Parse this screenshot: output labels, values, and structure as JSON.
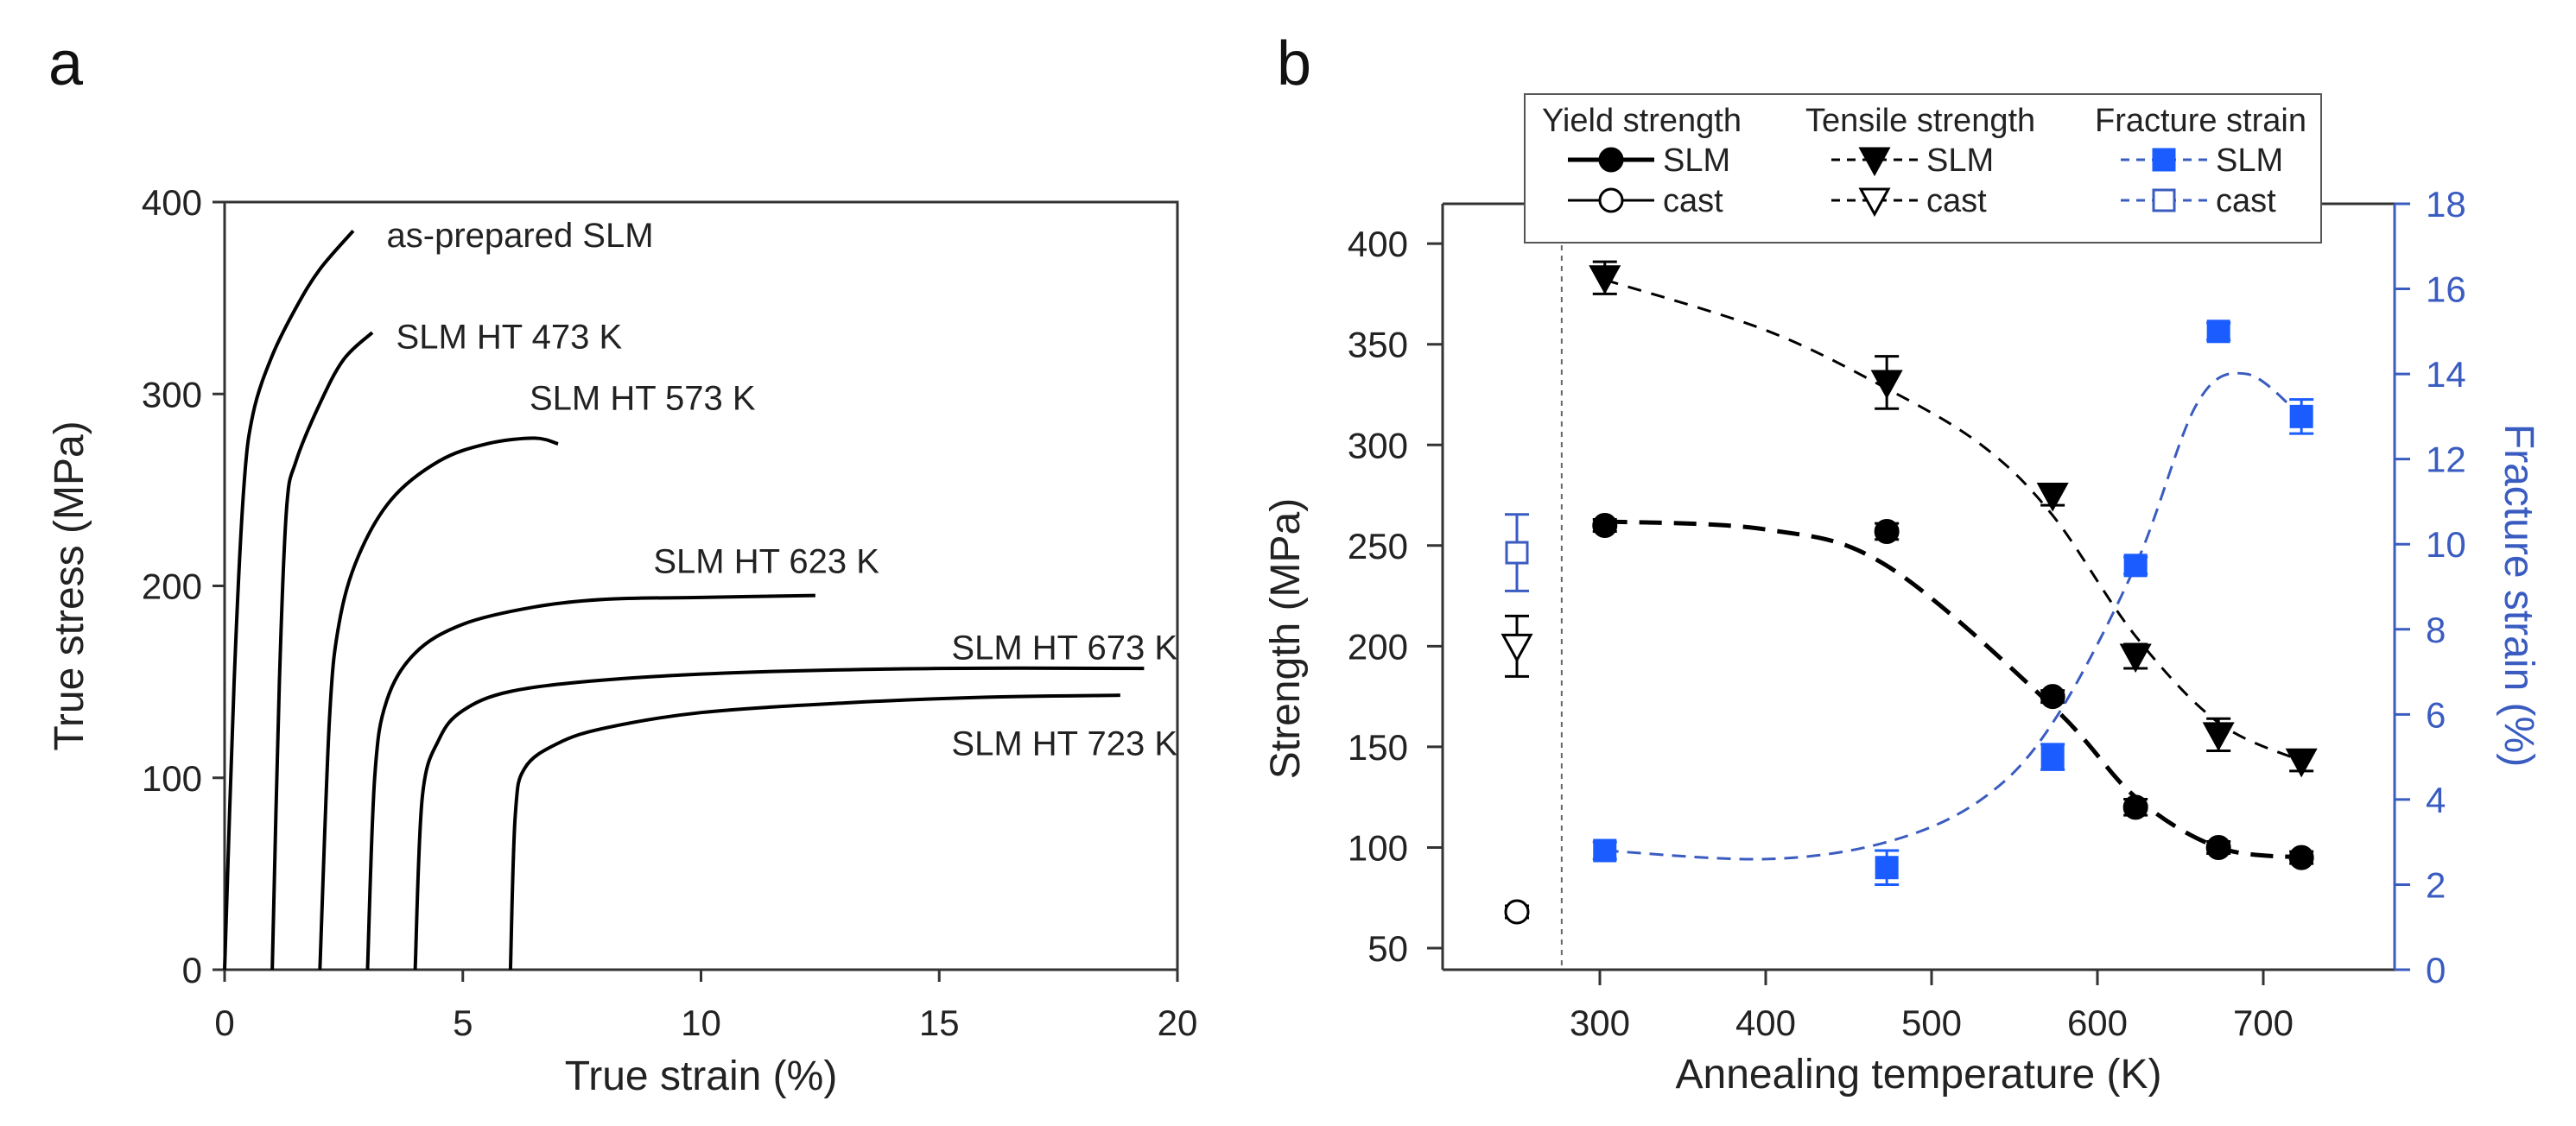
{
  "colors": {
    "axis": "#333333",
    "curve": "#000000",
    "blue_marker": "#1a5cff",
    "blue_axis": "#3a5cc0"
  },
  "chart_data": [
    {
      "panel": "a",
      "type": "line",
      "xlabel": "True strain (%)",
      "ylabel": "True stress (MPa)",
      "xlim": [
        0,
        20
      ],
      "ylim": [
        0,
        400
      ],
      "xticks": [
        0,
        5,
        10,
        15,
        20
      ],
      "yticks": [
        0,
        100,
        200,
        300,
        400
      ],
      "series": [
        {
          "name": "as-prepared SLM",
          "points": [
            [
              0,
              0
            ],
            [
              0.2,
              150
            ],
            [
              0.4,
              250
            ],
            [
              0.6,
              290
            ],
            [
              1,
              320
            ],
            [
              1.5,
              345
            ],
            [
              2,
              365
            ],
            [
              2.7,
              385
            ]
          ]
        },
        {
          "name": "SLM HT 473 K",
          "points": [
            [
              1,
              0
            ],
            [
              1.15,
              150
            ],
            [
              1.3,
              240
            ],
            [
              1.5,
              265
            ],
            [
              2,
              295
            ],
            [
              2.5,
              318
            ],
            [
              3.1,
              332
            ]
          ]
        },
        {
          "name": "SLM HT 573 K",
          "points": [
            [
              2,
              0
            ],
            [
              2.2,
              130
            ],
            [
              2.4,
              180
            ],
            [
              2.8,
              215
            ],
            [
              3.5,
              245
            ],
            [
              4.5,
              265
            ],
            [
              5.5,
              274
            ],
            [
              6.5,
              277
            ],
            [
              7,
              274
            ]
          ]
        },
        {
          "name": "SLM HT 623 K",
          "points": [
            [
              3,
              0
            ],
            [
              3.15,
              100
            ],
            [
              3.4,
              140
            ],
            [
              4,
              165
            ],
            [
              5,
              180
            ],
            [
              6.5,
              189
            ],
            [
              8,
              193
            ],
            [
              10,
              194
            ],
            [
              12.4,
              195
            ]
          ]
        },
        {
          "name": "SLM HT 673 K",
          "points": [
            [
              4,
              0
            ],
            [
              4.15,
              90
            ],
            [
              4.5,
              120
            ],
            [
              5,
              135
            ],
            [
              6,
              145
            ],
            [
              8,
              151
            ],
            [
              11,
              155
            ],
            [
              15,
              157
            ],
            [
              19.3,
              157
            ]
          ]
        },
        {
          "name": "SLM HT 723 K",
          "points": [
            [
              6,
              0
            ],
            [
              6.1,
              80
            ],
            [
              6.3,
              105
            ],
            [
              7,
              118
            ],
            [
              8,
              126
            ],
            [
              10,
              134
            ],
            [
              13,
              139
            ],
            [
              16,
              142
            ],
            [
              18.8,
              143
            ]
          ]
        }
      ]
    },
    {
      "panel": "b",
      "type": "scatter",
      "xlabel": "Annealing temperature (K)",
      "ylabel": "Strength (MPa)",
      "y2label": "Fracture strain (%)",
      "xlim": [
        205,
        770
      ],
      "ylim": [
        38,
        418
      ],
      "y2lim": [
        0,
        18
      ],
      "xticks": [
        300,
        400,
        500,
        600,
        700
      ],
      "yticks": [
        50,
        100,
        150,
        200,
        250,
        300,
        350,
        400
      ],
      "y2ticks": [
        0,
        2,
        4,
        6,
        8,
        10,
        12,
        14,
        16,
        18
      ],
      "separator_x": 277,
      "legend": {
        "columns": [
          {
            "title": "Yield strength",
            "slm": "SLM",
            "cast": "cast"
          },
          {
            "title": "Tensile strength",
            "slm": "SLM",
            "cast": "cast"
          },
          {
            "title": "Fracture strain",
            "slm": "SLM",
            "cast": "cast"
          }
        ],
        "placement": "top-center"
      },
      "series": [
        {
          "name": "Yield strength SLM",
          "axis": "left",
          "marker": "circle-filled",
          "x": [
            303,
            473,
            573,
            623,
            673,
            723
          ],
          "y": [
            260,
            257,
            175,
            120,
            100,
            95
          ],
          "err": [
            3,
            4,
            3,
            4,
            3,
            3
          ],
          "fit": [
            [
              303,
              262
            ],
            [
              400,
              258
            ],
            [
              473,
              240
            ],
            [
              573,
              170
            ],
            [
              623,
              125
            ],
            [
              673,
              100
            ],
            [
              723,
              95
            ]
          ]
        },
        {
          "name": "Yield strength cast",
          "axis": "left",
          "marker": "circle-open",
          "x": [
            250
          ],
          "y": [
            68
          ],
          "err": [
            3
          ]
        },
        {
          "name": "Tensile strength SLM",
          "axis": "left",
          "marker": "triangle-down-filled",
          "x": [
            303,
            473,
            573,
            623,
            673,
            723
          ],
          "y": [
            383,
            331,
            275,
            195,
            156,
            143
          ],
          "err": [
            8,
            13,
            5,
            6,
            8,
            5
          ],
          "fit": [
            [
              303,
              382
            ],
            [
              400,
              357
            ],
            [
              473,
              328
            ],
            [
              530,
              300
            ],
            [
              573,
              265
            ],
            [
              623,
              205
            ],
            [
              673,
              162
            ],
            [
              723,
              143
            ]
          ]
        },
        {
          "name": "Tensile strength cast",
          "axis": "left",
          "marker": "triangle-down-open",
          "x": [
            250
          ],
          "y": [
            200
          ],
          "err": [
            15
          ]
        },
        {
          "name": "Fracture strain SLM",
          "axis": "right",
          "marker": "square-filled",
          "x": [
            303,
            473,
            573,
            623,
            673,
            723
          ],
          "y": [
            2.8,
            2.4,
            5.0,
            9.5,
            15.0,
            13.0
          ],
          "err": [
            0.2,
            0.4,
            0.3,
            0.2,
            0.2,
            0.4
          ],
          "fit": [
            [
              303,
              2.8
            ],
            [
              400,
              2.6
            ],
            [
              473,
              3.0
            ],
            [
              530,
              4.0
            ],
            [
              573,
              5.8
            ],
            [
              623,
              9.5
            ],
            [
              660,
              13.3
            ],
            [
              690,
              14.0
            ],
            [
              723,
              13.0
            ]
          ]
        },
        {
          "name": "Fracture strain cast",
          "axis": "right",
          "marker": "square-open",
          "x": [
            250
          ],
          "y": [
            9.8
          ],
          "err": [
            0.9
          ]
        }
      ]
    }
  ],
  "panel_labels": {
    "a": "a",
    "b": "b"
  }
}
